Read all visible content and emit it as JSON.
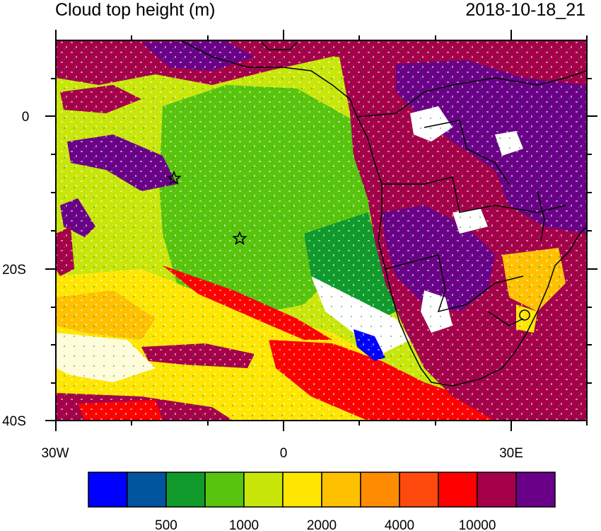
{
  "title": "Cloud top height (m)",
  "timestamp": "2018-10-18_21",
  "axes": {
    "x_ticks": [
      "30W",
      "0",
      "30E"
    ],
    "y_ticks": [
      "0",
      "20S",
      "40S"
    ]
  },
  "colorbar": {
    "colors": [
      "#0000ff",
      "#00559e",
      "#119a2c",
      "#58c40e",
      "#c8e60a",
      "#ffe600",
      "#ffc000",
      "#ff8c00",
      "#ff4a0d",
      "#ff0000",
      "#a5004a",
      "#6a0088"
    ],
    "labels": [
      "500",
      "1000",
      "2000",
      "4000",
      "10000"
    ]
  },
  "colors": {
    "ocean_green": "#58c40e",
    "high_cloud_purple": "#6a0088",
    "high_cloud_maroon": "#a5004a",
    "mid_yellow": "#ffe600",
    "red": "#ff0000",
    "lime": "#c8e60a",
    "dark_green": "#119a2c",
    "clear": "#ffffff"
  },
  "markers": [
    {
      "name": "star-marker-1"
    },
    {
      "name": "star-marker-2"
    }
  ]
}
